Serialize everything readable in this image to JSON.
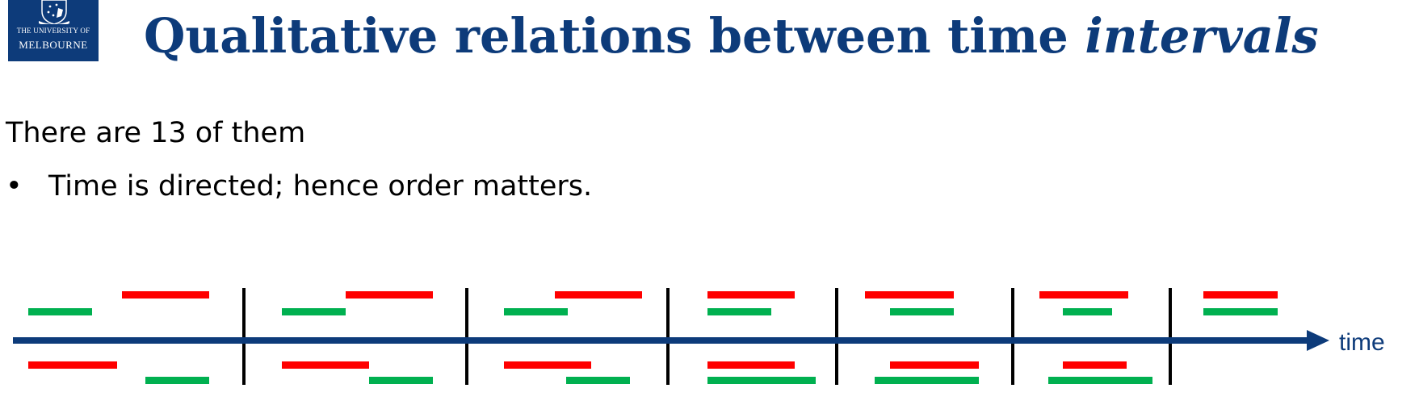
{
  "logo": {
    "line1": "THE UNIVERSITY OF",
    "line2": "MELBOURNE",
    "crest_icon": "university-crest-icon",
    "color": "#0d3b7a"
  },
  "title": {
    "main": "Qualitative relations between time ",
    "emphasis": "intervals",
    "color": "#0d3b7a"
  },
  "intro": "There are 13 of them",
  "bullets": [
    {
      "marker": "•",
      "text": "Time is directed; hence order matters."
    }
  ],
  "diagram": {
    "axis_label": "time",
    "axis_color": "#0d3b7a",
    "red_color": "#ff0000",
    "green_color": "#00b050",
    "divider_color": "#000000"
  }
}
